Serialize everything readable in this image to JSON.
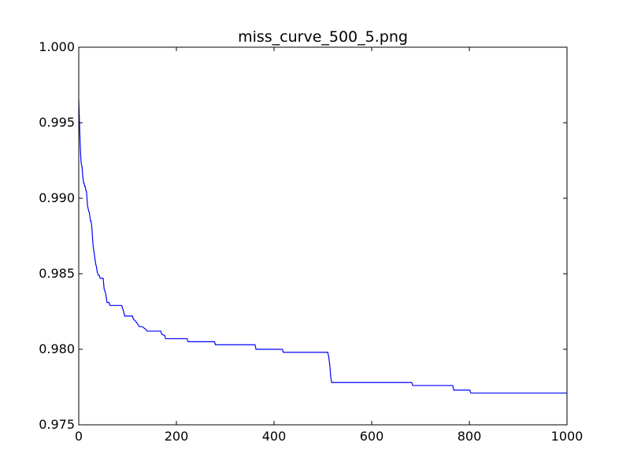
{
  "chart_data": {
    "type": "line",
    "title": "miss_curve_500_5.png",
    "xlabel": "",
    "ylabel": "",
    "xlim": [
      0,
      1000
    ],
    "ylim": [
      0.975,
      1.0
    ],
    "x_ticks": [
      "0",
      "200",
      "400",
      "600",
      "800",
      "1000"
    ],
    "y_ticks": [
      "0.975",
      "0.980",
      "0.985",
      "0.990",
      "0.995",
      "1.000"
    ],
    "grid": false,
    "legend": "none",
    "series": [
      {
        "color": "#0000ff",
        "x": [
          0,
          1,
          2,
          3,
          4,
          5,
          6,
          7,
          8,
          10,
          11,
          12,
          13,
          14,
          16,
          18,
          20,
          22,
          24,
          25,
          26,
          27,
          28,
          29,
          30,
          31,
          32,
          33,
          34,
          35,
          36,
          37,
          38,
          39,
          40,
          42,
          44,
          46,
          48,
          50,
          52,
          55,
          56,
          57,
          58,
          60,
          62,
          64,
          66,
          70,
          88,
          90,
          92,
          94,
          96,
          110,
          112,
          118,
          124,
          126,
          130,
          138,
          140,
          142,
          168,
          170,
          176,
          178,
          180,
          222,
          224,
          278,
          280,
          361,
          363,
          417,
          419,
          510,
          512,
          514,
          516,
          518,
          520,
          682,
          684,
          766,
          768,
          801,
          803,
          1000
        ],
        "y": [
          0.9965,
          0.9955,
          0.9945,
          0.9935,
          0.9928,
          0.9923,
          0.9922,
          0.992,
          0.9915,
          0.991,
          0.991,
          0.9908,
          0.9908,
          0.9906,
          0.9904,
          0.9895,
          0.9892,
          0.989,
          0.9885,
          0.9885,
          0.9883,
          0.988,
          0.9875,
          0.987,
          0.9867,
          0.9865,
          0.9863,
          0.986,
          0.9858,
          0.9856,
          0.9855,
          0.9853,
          0.9851,
          0.985,
          0.9849,
          0.9849,
          0.9847,
          0.9847,
          0.9847,
          0.9847,
          0.984,
          0.9837,
          0.9835,
          0.9833,
          0.9831,
          0.9831,
          0.9831,
          0.9829,
          0.9829,
          0.9829,
          0.9829,
          0.9827,
          0.9825,
          0.9822,
          0.9822,
          0.9822,
          0.982,
          0.9818,
          0.9815,
          0.9815,
          0.9815,
          0.9813,
          0.9812,
          0.9812,
          0.9812,
          0.981,
          0.9809,
          0.9807,
          0.9807,
          0.9807,
          0.9805,
          0.9805,
          0.9803,
          0.9803,
          0.98,
          0.98,
          0.9798,
          0.9798,
          0.9795,
          0.979,
          0.9782,
          0.9778,
          0.9778,
          0.9778,
          0.9776,
          0.9776,
          0.9773,
          0.9773,
          0.9771,
          0.9771
        ]
      }
    ]
  }
}
